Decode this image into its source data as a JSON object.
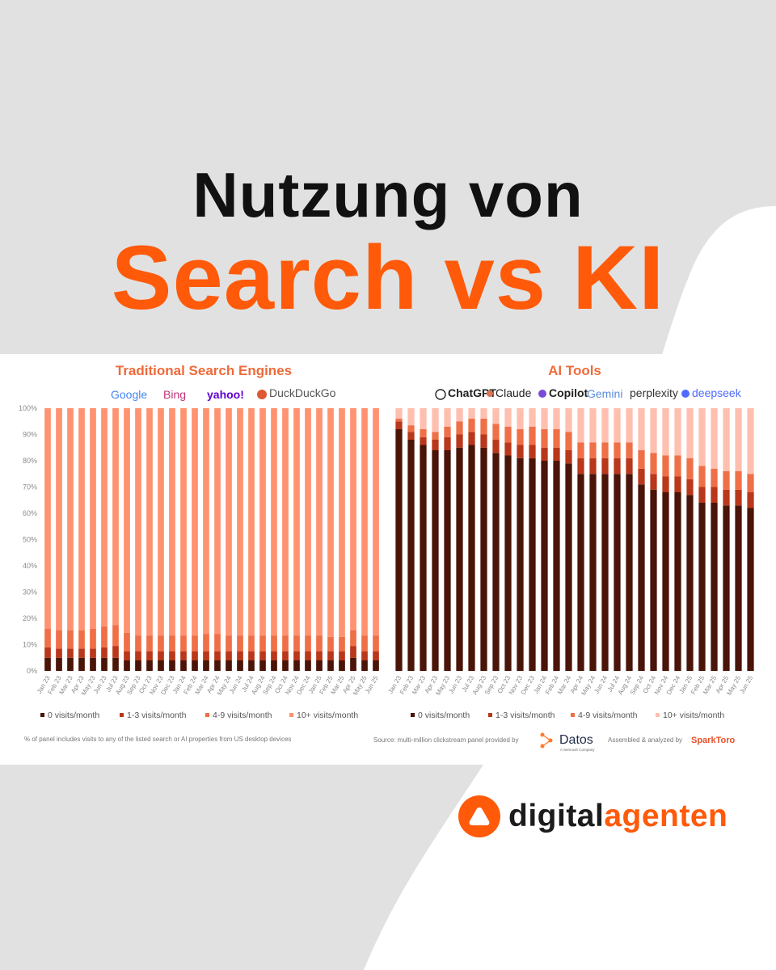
{
  "heading": {
    "line1": "Nutzung von",
    "line2": "Search vs KI"
  },
  "colors": {
    "accent": "#ff5a0a",
    "background_shape": "#e1e1e1",
    "series": [
      "#4a1408",
      "#b9371a",
      "#ef6f47",
      "#ff9270"
    ],
    "series_light": [
      "#4a1408",
      "#b9371a",
      "#ef6f47",
      "#ffbfae"
    ]
  },
  "logos": {
    "search": [
      "Google",
      "Bing",
      "yahoo!",
      "DuckDuckGo"
    ],
    "ai": [
      "ChatGPT",
      "Claude",
      "Copilot",
      "Gemini",
      "perplexity",
      "deepseek"
    ]
  },
  "chart_data": [
    {
      "type": "bar",
      "stacked": true,
      "title": "Traditional Search Engines",
      "categories": [
        "Jan 23",
        "Feb 23",
        "Mar 23",
        "Apr 23",
        "May 23",
        "Jun 23",
        "Jul 23",
        "Aug 23",
        "Sep 23",
        "Oct 23",
        "Nov 23",
        "Dec 23",
        "Jan 24",
        "Feb 24",
        "Mar 24",
        "Apr 24",
        "May 24",
        "Jun 24",
        "Jul 24",
        "Aug 24",
        "Sep 24",
        "Oct 24",
        "Nov 24",
        "Dec 24",
        "Jan 25",
        "Feb 25",
        "Mar 25",
        "Apr 25",
        "May 25",
        "Jun 25"
      ],
      "ylim": [
        0,
        100
      ],
      "yticks": [
        "0%",
        "10%",
        "20%",
        "30%",
        "40%",
        "50%",
        "60%",
        "70%",
        "80%",
        "90%",
        "100%"
      ],
      "grid": false,
      "legend_position": "bottom",
      "series": [
        {
          "name": "0 visits/month",
          "values": [
            5,
            5,
            5,
            5,
            5,
            5,
            5,
            4,
            4,
            4,
            4,
            4,
            4,
            4,
            4,
            4,
            4,
            4,
            4,
            4,
            4,
            4,
            4,
            4,
            4,
            4,
            4,
            5,
            4,
            4
          ]
        },
        {
          "name": "1-3 visits/month",
          "values": [
            4,
            3.5,
            3.5,
            3.5,
            3.5,
            4,
            4.5,
            3.5,
            3.5,
            3.5,
            3.5,
            3.5,
            3.5,
            3.5,
            3.5,
            3.5,
            3.5,
            3.5,
            3.5,
            3.5,
            3.5,
            3.5,
            3.5,
            3.5,
            3.5,
            3.5,
            3.5,
            4.5,
            3.5,
            3.5
          ]
        },
        {
          "name": "4-9 visits/month",
          "values": [
            7,
            7,
            7,
            7,
            7.5,
            8,
            8,
            7,
            6,
            6,
            6,
            6,
            6,
            6,
            6.5,
            6.5,
            6,
            6,
            6,
            6,
            6,
            6,
            6,
            6,
            6,
            5.5,
            5.5,
            6,
            6,
            6
          ]
        },
        {
          "name": "10+ visits/month",
          "values": [
            84,
            84.5,
            84.5,
            84.5,
            84,
            83,
            82.5,
            85.5,
            86.5,
            86.5,
            86.5,
            86.5,
            86.5,
            86.5,
            86,
            86,
            86.5,
            86.5,
            86.5,
            86.5,
            86.5,
            86.5,
            86.5,
            86.5,
            86.5,
            87,
            87,
            84.5,
            86.5,
            86.5
          ]
        }
      ],
      "footnote": "% of panel includes visits to any of the listed search or AI properties from US desktop devices"
    },
    {
      "type": "bar",
      "stacked": true,
      "title": "AI Tools",
      "categories": [
        "Jan 23",
        "Feb 23",
        "Mar 23",
        "Apr 23",
        "May 23",
        "Jun 23",
        "Jul 23",
        "Aug 23",
        "Sep 23",
        "Oct 23",
        "Nov 23",
        "Dec 23",
        "Jan 24",
        "Feb 24",
        "Mar 24",
        "Apr 24",
        "May 24",
        "Jun 24",
        "Jul 24",
        "Aug 24",
        "Sep 24",
        "Oct 24",
        "Nov 24",
        "Dec 24",
        "Jan 25",
        "Feb 25",
        "Mar 25",
        "Apr 25",
        "May 25",
        "Jun 25"
      ],
      "ylim": [
        0,
        100
      ],
      "grid": false,
      "legend_position": "bottom",
      "series": [
        {
          "name": "0 visits/month",
          "values": [
            92,
            88,
            86,
            84,
            84,
            85,
            86,
            85,
            83,
            82,
            81,
            81,
            80,
            80,
            79,
            75,
            75,
            75,
            75,
            75,
            71,
            69,
            68,
            68,
            67,
            64,
            64,
            63,
            63,
            62
          ]
        },
        {
          "name": "1-3 visits/month",
          "values": [
            3,
            3,
            3,
            4,
            5,
            5,
            5,
            5,
            5,
            5,
            5,
            5,
            5,
            5,
            5,
            6,
            6,
            6,
            6,
            6,
            6,
            6,
            6,
            6,
            6,
            6,
            6,
            6,
            6,
            6
          ]
        },
        {
          "name": "4-9 visits/month",
          "values": [
            1,
            2.5,
            3,
            3,
            4,
            5,
            5,
            6,
            6,
            6,
            6,
            7,
            7,
            7,
            7,
            6,
            6,
            6,
            6,
            6,
            7,
            8,
            8,
            8,
            8,
            8,
            7,
            7,
            7,
            7
          ]
        },
        {
          "name": "10+ visits/month",
          "values": [
            4,
            6.5,
            8,
            9,
            7,
            5,
            4,
            4,
            6,
            7,
            8,
            7,
            8,
            8,
            9,
            13,
            13,
            13,
            13,
            13,
            16,
            17,
            18,
            18,
            19,
            22,
            23,
            24,
            24,
            25
          ]
        }
      ],
      "source": "Source: multi-million clickstream panel provided by",
      "source_brand": "Datos",
      "source_brand_sub": "A Semrush Company",
      "assembled": "Assembled & analyzed by",
      "assembled_brand": "SparkToro"
    }
  ],
  "brand": {
    "part1": "digital",
    "part2": "agenten"
  }
}
